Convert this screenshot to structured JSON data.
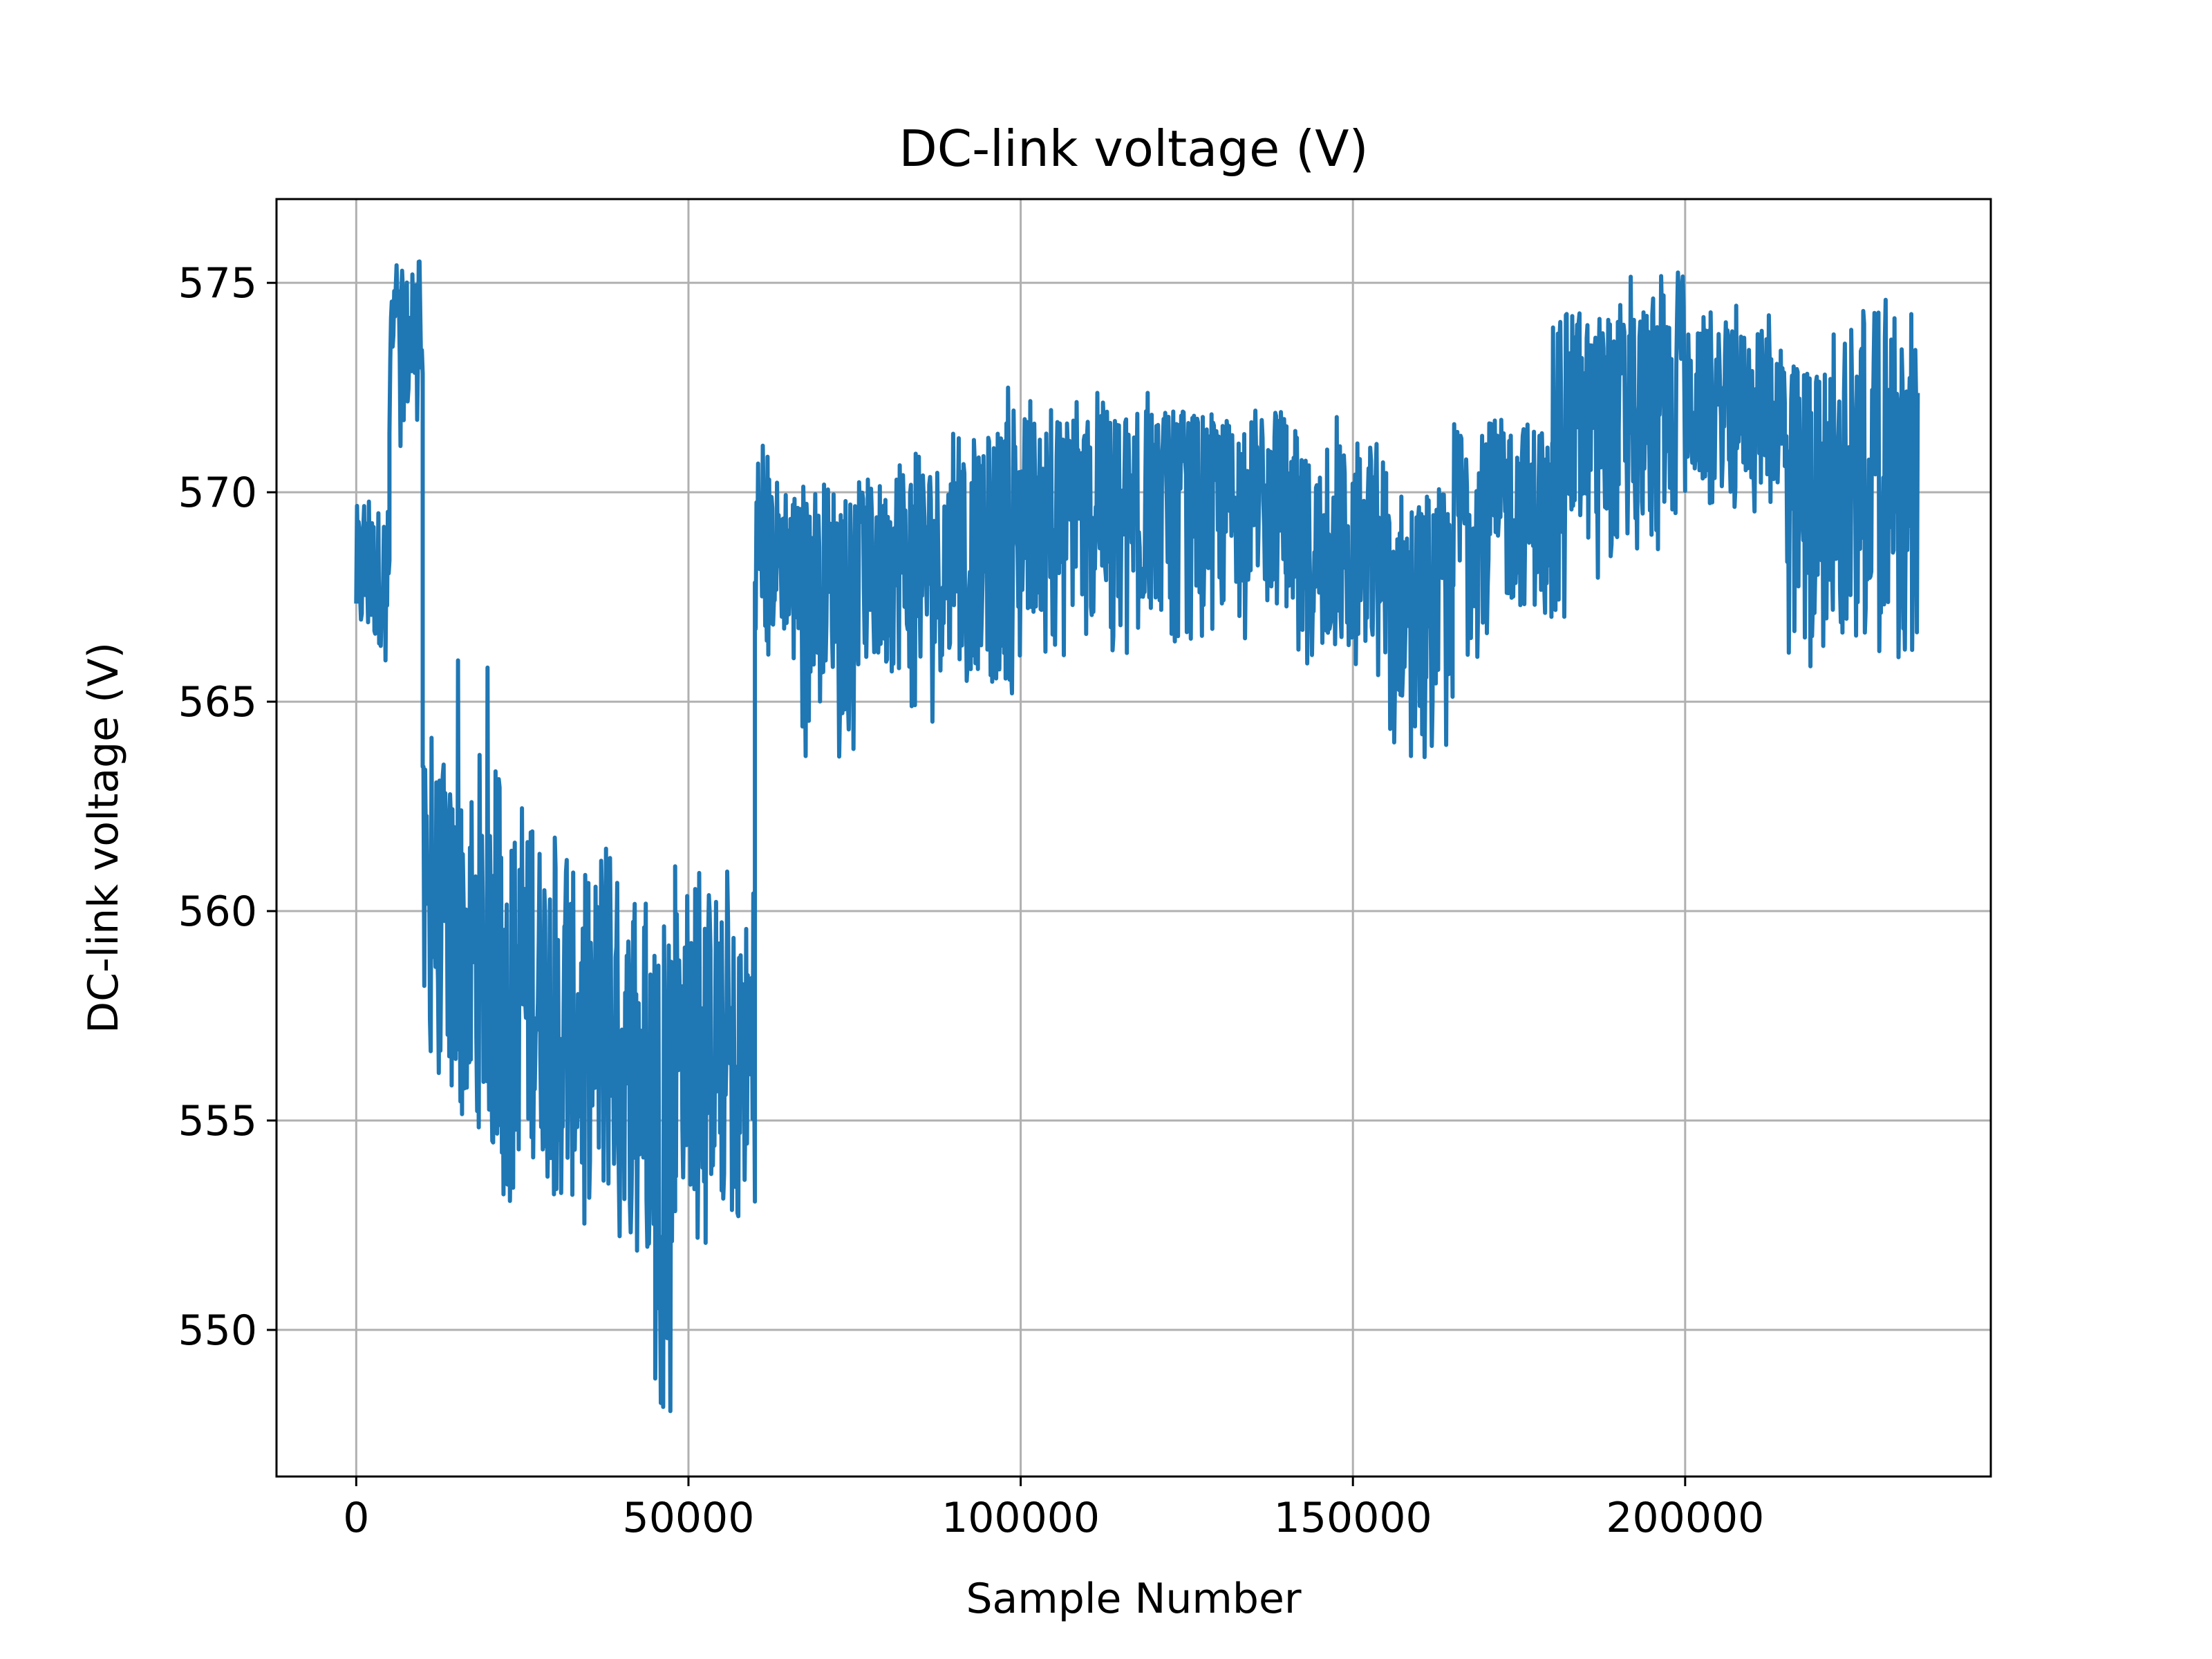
{
  "chart_data": {
    "type": "line",
    "title": "DC-link voltage (V)",
    "xlabel": "Sample Number",
    "ylabel": "DC-link voltage (V)",
    "xlim": [
      -12000,
      246000
    ],
    "ylim": [
      546.5,
      577.0
    ],
    "xticks": [
      0,
      50000,
      100000,
      150000,
      200000
    ],
    "xtick_labels": [
      "0",
      "50000",
      "100000",
      "150000",
      "200000"
    ],
    "yticks": [
      550,
      555,
      560,
      565,
      570,
      575
    ],
    "ytick_labels": [
      "550",
      "555",
      "560",
      "565",
      "570",
      "575"
    ],
    "grid": true,
    "legend": "none",
    "series": [
      {
        "color": "#1f77b4",
        "segments": [
          {
            "x": [
              0,
              5000
            ],
            "center": 568.0,
            "low": 565.5,
            "high": 570.0
          },
          {
            "x": [
              5000,
              10000
            ],
            "center": 573.5,
            "low": 570.8,
            "high": 575.6
          },
          {
            "x": [
              10000,
              14000
            ],
            "center": 560.0,
            "low": 555.5,
            "high": 565.0
          },
          {
            "x": [
              14000,
              20000
            ],
            "center": 559.0,
            "low": 555.0,
            "high": 566.2
          },
          {
            "x": [
              20000,
              30000
            ],
            "center": 558.0,
            "low": 553.0,
            "high": 563.5
          },
          {
            "x": [
              30000,
              40000
            ],
            "center": 557.0,
            "low": 552.0,
            "high": 562.5
          },
          {
            "x": [
              40000,
              45000
            ],
            "center": 556.5,
            "low": 551.5,
            "high": 561.0
          },
          {
            "x": [
              45000,
              48000
            ],
            "center": 555.0,
            "low": 548.0,
            "high": 560.8
          },
          {
            "x": [
              48000,
              55000
            ],
            "center": 557.0,
            "low": 552.0,
            "high": 561.8
          },
          {
            "x": [
              55000,
              60000
            ],
            "center": 556.5,
            "low": 551.8,
            "high": 561.0
          },
          {
            "x": [
              60000,
              65000
            ],
            "center": 568.5,
            "low": 566.0,
            "high": 571.2
          },
          {
            "x": [
              65000,
              80000
            ],
            "center": 568.0,
            "low": 563.6,
            "high": 569.8
          },
          {
            "x": [
              80000,
              95000
            ],
            "center": 568.3,
            "low": 564.5,
            "high": 571.4
          },
          {
            "x": [
              95000,
              100000
            ],
            "center": 568.5,
            "low": 564.5,
            "high": 572.5
          },
          {
            "x": [
              100000,
              125000
            ],
            "center": 569.5,
            "low": 566.0,
            "high": 572.5
          },
          {
            "x": [
              125000,
              140000
            ],
            "center": 569.8,
            "low": 566.5,
            "high": 572.0
          },
          {
            "x": [
              140000,
              155000
            ],
            "center": 568.5,
            "low": 565.5,
            "high": 571.9
          },
          {
            "x": [
              155000,
              165000
            ],
            "center": 567.5,
            "low": 563.3,
            "high": 570.3
          },
          {
            "x": [
              165000,
              180000
            ],
            "center": 569.5,
            "low": 566.0,
            "high": 572.0
          },
          {
            "x": [
              180000,
              190000
            ],
            "center": 571.5,
            "low": 567.0,
            "high": 574.4
          },
          {
            "x": [
              190000,
              200000
            ],
            "center": 572.0,
            "low": 568.2,
            "high": 575.3
          },
          {
            "x": [
              200000,
              215000
            ],
            "center": 572.0,
            "low": 569.5,
            "high": 574.5
          },
          {
            "x": [
              215000,
              225000
            ],
            "center": 570.0,
            "low": 565.7,
            "high": 574.0
          },
          {
            "x": [
              225000,
              235000
            ],
            "center": 570.5,
            "low": 566.0,
            "high": 574.6
          }
        ]
      }
    ]
  }
}
